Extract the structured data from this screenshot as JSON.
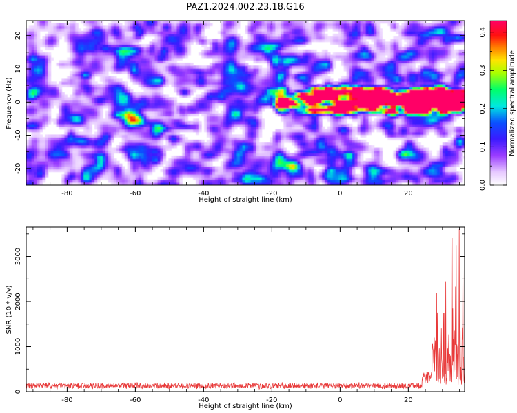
{
  "figure": {
    "title": "PAZ1.2024.002.23.18.G16"
  },
  "chart_data": [
    {
      "type": "heatmap",
      "xlabel": "Height of straight line (km)",
      "ylabel": "Frequency (Hz)",
      "xlim": [
        -92,
        36.5
      ],
      "ylim": [
        -25,
        24.5
      ],
      "xticks": [
        -80,
        -60,
        -40,
        -20,
        0,
        20
      ],
      "yticks": [
        -20,
        -10,
        0,
        10,
        20
      ],
      "colorbar": {
        "label": "Normalized spectral amplitude",
        "range": [
          0.0,
          0.43
        ],
        "ticks": [
          "0.0",
          "0.1",
          "0.2",
          "0.3",
          "0.4"
        ],
        "colormap": "rainbow (white-violet-blue-cyan-green-yellow-red-magenta)"
      },
      "signal_band": {
        "description": "high-amplitude band near 0 Hz",
        "x_range": [
          -20,
          36
        ],
        "center_hz": 0.5,
        "peak_amplitude": 0.43,
        "peak_x": 34
      },
      "background_level": 0.05
    },
    {
      "type": "line",
      "xlabel": "Height of straight line (km)",
      "ylabel": "SNR (10 * v/v)",
      "xlim": [
        -92,
        36.5
      ],
      "ylim": [
        0,
        3650
      ],
      "xticks": [
        -80,
        -60,
        -40,
        -20,
        0,
        20
      ],
      "yticks": [
        0,
        1000,
        2000,
        3000
      ],
      "series": [
        {
          "color": "#e83a3a",
          "baseline_value": 130,
          "noise_amplitude": 80,
          "rise_start_x": 24,
          "segments": [
            {
              "x_range": [
                -92,
                24
              ],
              "mean": 130
            },
            {
              "x_range": [
                24,
                27
              ],
              "mean": 300
            },
            {
              "x_range": [
                27,
                36.5
              ],
              "mean": 1500
            }
          ],
          "peaks": [
            {
              "x": 28.3,
              "value": 2200
            },
            {
              "x": 31.0,
              "value": 2450
            },
            {
              "x": 32.8,
              "value": 3400
            },
            {
              "x": 34.0,
              "value": 3250
            },
            {
              "x": 34.9,
              "value": 3600
            },
            {
              "x": 36.0,
              "value": 3000
            }
          ]
        }
      ]
    }
  ],
  "colors": {
    "line": "#e83a3a",
    "axis": "#000000",
    "background": "#ffffff"
  }
}
